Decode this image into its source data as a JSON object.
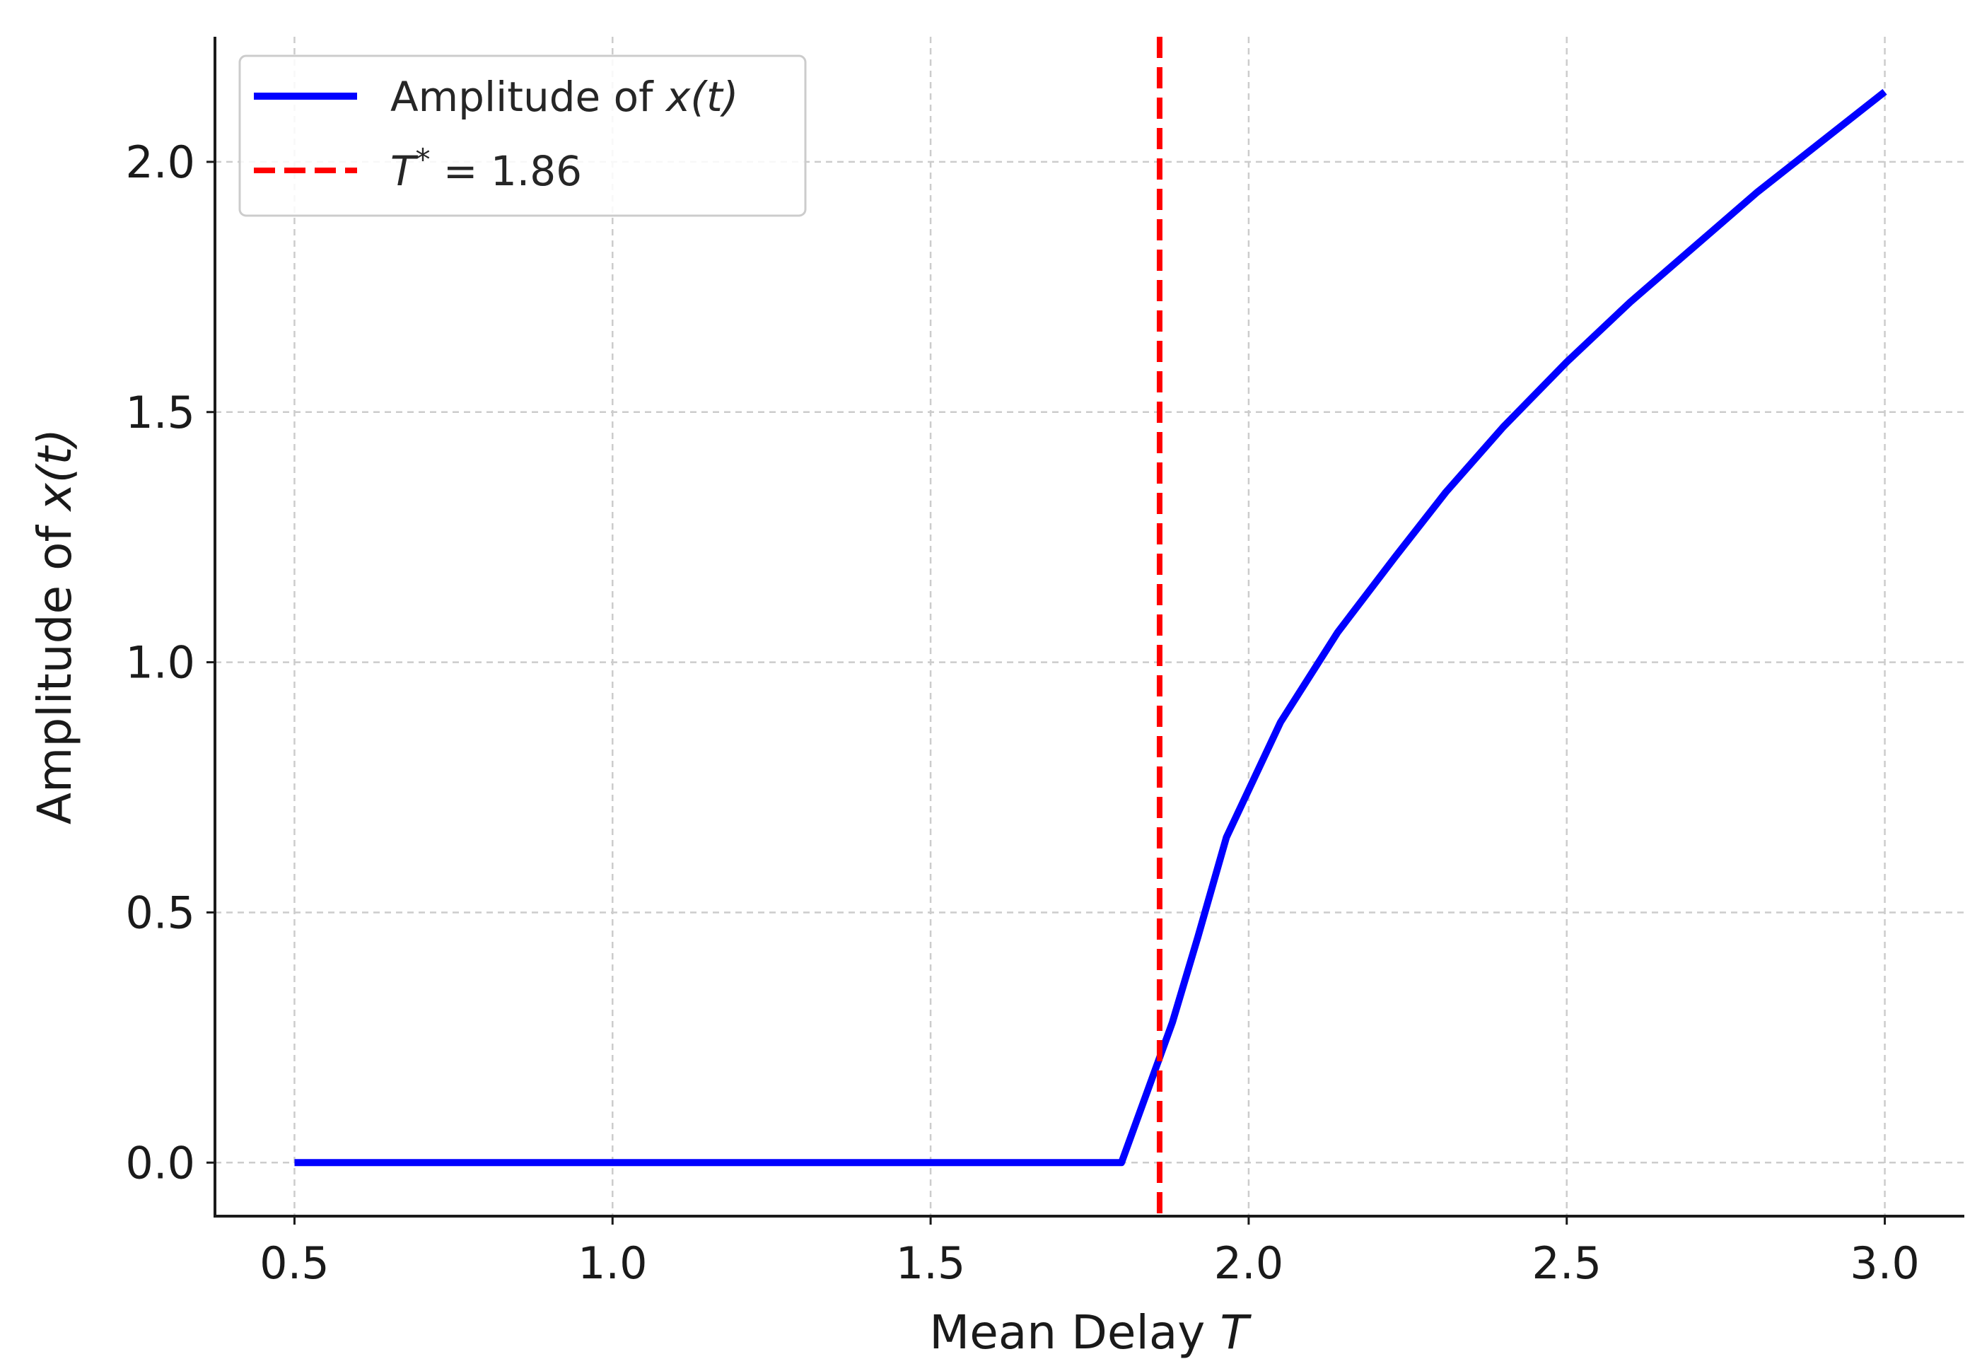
{
  "chart_data": {
    "type": "line",
    "xlabel": "Mean Delay ",
    "xlabel_var": "T",
    "ylabel": "Amplitude of ",
    "ylabel_var": "x(t)",
    "xlim": [
      0.375,
      3.125
    ],
    "ylim": [
      -0.107,
      2.25
    ],
    "x_ticks": [
      0.5,
      1.0,
      1.5,
      2.0,
      2.5,
      3.0
    ],
    "x_tick_labels": [
      "0.5",
      "1.0",
      "1.5",
      "2.0",
      "2.5",
      "3.0"
    ],
    "y_ticks": [
      0.0,
      0.5,
      1.0,
      1.5,
      2.0
    ],
    "y_tick_labels": [
      "0.0",
      "0.5",
      "1.0",
      "1.5",
      "2.0"
    ],
    "grid": true,
    "legend_position": "top-left",
    "series": [
      {
        "name": "Amplitude of x(t)",
        "legend_prefix": "Amplitude of ",
        "legend_var": "x(t)",
        "color": "#0000ff",
        "style": "solid",
        "x": [
          0.5,
          1.0,
          1.5,
          1.795,
          1.8,
          1.88,
          1.92,
          1.965,
          2.05,
          2.14,
          2.23,
          2.31,
          2.4,
          2.5,
          2.6,
          2.7,
          2.8,
          2.9,
          3.0
        ],
        "y": [
          0.0,
          0.0,
          0.0,
          0.0,
          0.0,
          0.28,
          0.45,
          0.65,
          0.88,
          1.06,
          1.21,
          1.34,
          1.47,
          1.6,
          1.72,
          1.83,
          1.94,
          2.04,
          2.14
        ]
      }
    ],
    "reference_line": {
      "name": "T* = 1.86",
      "legend_var": "T",
      "legend_sup": "*",
      "legend_rest": " = 1.86",
      "x": 1.86,
      "color": "#ff0000",
      "style": "dashed"
    }
  }
}
